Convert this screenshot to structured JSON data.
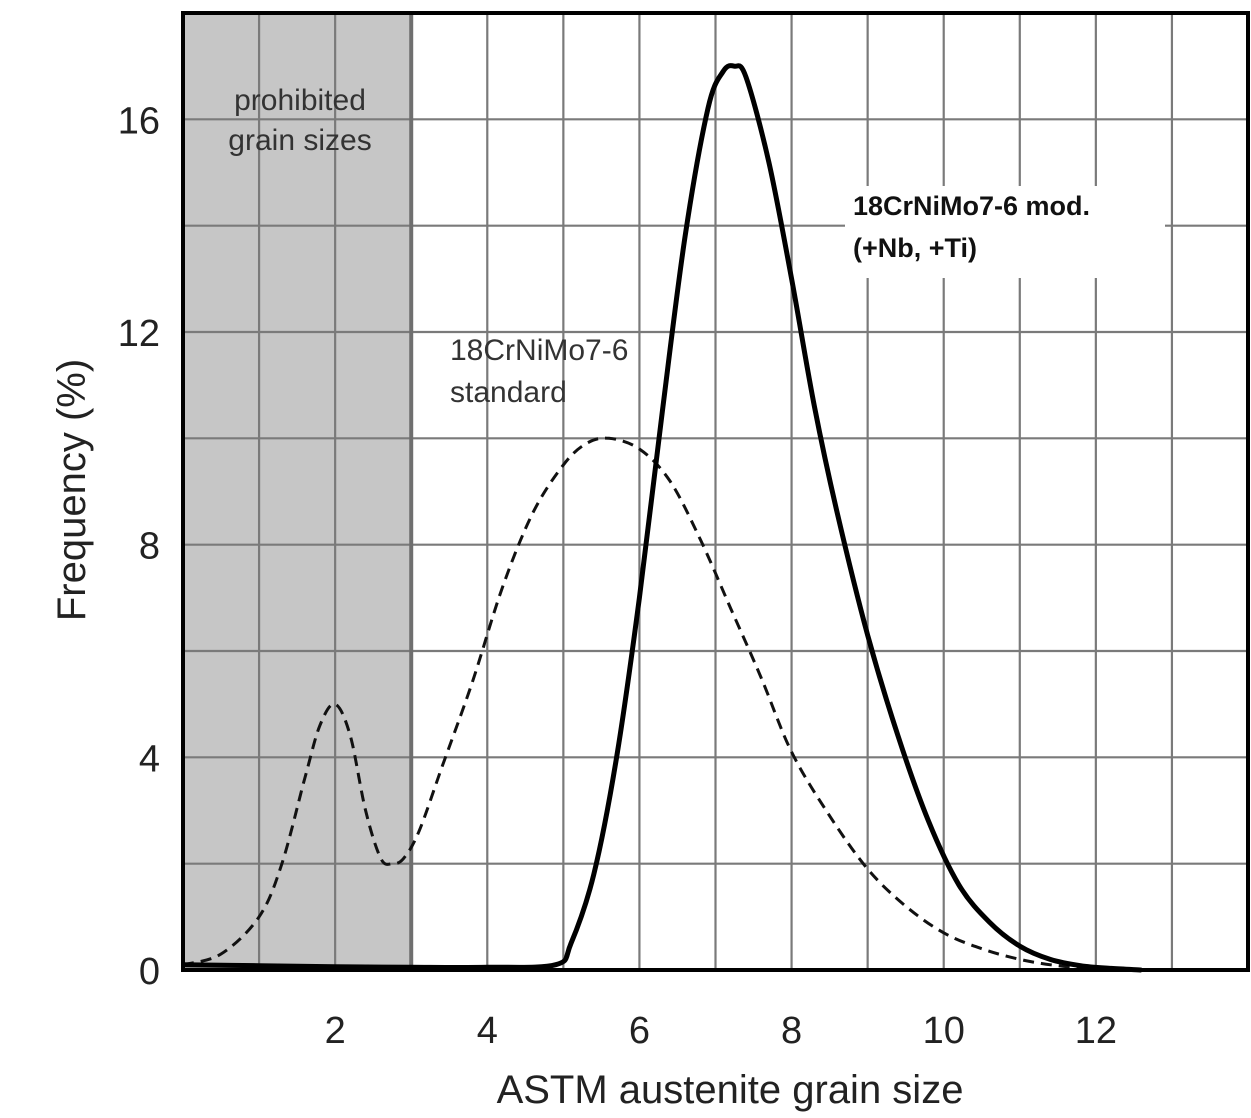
{
  "chart_data": {
    "type": "line",
    "xlabel": "ASTM austenite grain size",
    "ylabel": "Frequency (%)",
    "xlim": [
      0,
      14
    ],
    "ylim": [
      0,
      18
    ],
    "x_ticks": [
      "2",
      "4",
      "6",
      "8",
      "10",
      "12"
    ],
    "y_ticks": [
      "0",
      "4",
      "8",
      "12",
      "16"
    ],
    "grid": true,
    "shaded_region": {
      "x_range": [
        0,
        3
      ],
      "label_lines": [
        "prohibited",
        "grain sizes"
      ]
    },
    "series": [
      {
        "label_lines": [
          "18CrNiMo7-6",
          "standard"
        ],
        "style": "dashed",
        "x": [
          0,
          0.5,
          1.0,
          1.3,
          1.6,
          1.8,
          2.0,
          2.2,
          2.4,
          2.6,
          2.75,
          2.9,
          3.1,
          3.4,
          3.8,
          4.2,
          4.6,
          5.0,
          5.3,
          5.6,
          6.0,
          6.4,
          6.8,
          7.2,
          7.6,
          8.0,
          8.5,
          9.0,
          9.5,
          10.0,
          10.5,
          11.0,
          11.5,
          12.0,
          12.5
        ],
        "y": [
          0.1,
          0.3,
          1.0,
          2.0,
          3.6,
          4.6,
          5.0,
          4.4,
          3.0,
          2.1,
          2.0,
          2.1,
          2.6,
          3.8,
          5.4,
          7.2,
          8.6,
          9.5,
          9.9,
          10.0,
          9.8,
          9.2,
          8.1,
          6.8,
          5.5,
          4.1,
          2.9,
          1.9,
          1.2,
          0.7,
          0.4,
          0.2,
          0.08,
          0.03,
          0
        ]
      },
      {
        "label_lines": [
          "18CrNiMo7-6 mod.",
          "(+Nb, +Ti)"
        ],
        "style": "solid",
        "x": [
          0,
          1,
          2,
          3,
          4,
          4.9,
          5.1,
          5.4,
          5.7,
          6.0,
          6.3,
          6.6,
          6.9,
          7.1,
          7.25,
          7.4,
          7.7,
          8.0,
          8.3,
          8.6,
          9.0,
          9.4,
          9.8,
          10.2,
          10.6,
          11.0,
          11.4,
          11.8,
          12.2,
          12.6
        ],
        "y": [
          0.1,
          0.08,
          0.06,
          0.05,
          0.05,
          0.1,
          0.5,
          1.8,
          4.0,
          7.0,
          10.5,
          13.8,
          16.2,
          16.9,
          17.0,
          16.8,
          15.2,
          13.0,
          10.6,
          8.6,
          6.3,
          4.4,
          2.8,
          1.6,
          0.9,
          0.45,
          0.2,
          0.08,
          0.03,
          0
        ]
      }
    ]
  }
}
